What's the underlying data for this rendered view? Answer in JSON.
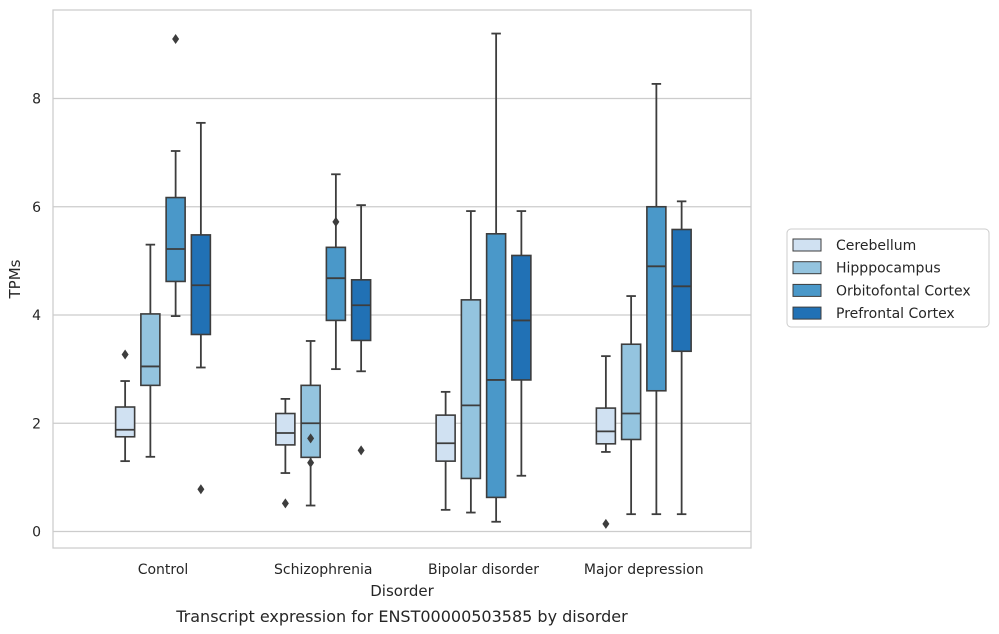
{
  "chart_data": {
    "type": "boxplot",
    "caption": "Transcript expression for ENST00000503585 by disorder",
    "xlabel": "Disorder",
    "ylabel": "TPMs",
    "ylim": [
      -0.3,
      9.65
    ],
    "yticks": [
      0,
      2,
      4,
      6,
      8
    ],
    "grid": true,
    "legend_position": "right",
    "categories": [
      "Control",
      "Schizophrenia",
      "Bipolar disorder",
      "Major depression"
    ],
    "series": [
      {
        "name": "Cerebellum",
        "color": "#d0e1f2",
        "boxes": [
          {
            "whislo": 1.3,
            "q1": 1.75,
            "med": 1.88,
            "q3": 2.3,
            "whishi": 2.78,
            "fliers": [
              3.27
            ]
          },
          {
            "whislo": 1.08,
            "q1": 1.6,
            "med": 1.82,
            "q3": 2.18,
            "whishi": 2.45,
            "fliers": [
              0.52
            ]
          },
          {
            "whislo": 0.4,
            "q1": 1.3,
            "med": 1.63,
            "q3": 2.15,
            "whishi": 2.58,
            "fliers": []
          },
          {
            "whislo": 1.47,
            "q1": 1.62,
            "med": 1.85,
            "q3": 2.28,
            "whishi": 3.24,
            "fliers": [
              0.14
            ]
          }
        ]
      },
      {
        "name": "Hipppocampus",
        "color": "#94c4df",
        "boxes": [
          {
            "whislo": 1.38,
            "q1": 2.7,
            "med": 3.05,
            "q3": 4.02,
            "whishi": 5.3,
            "fliers": []
          },
          {
            "whislo": 0.48,
            "q1": 1.37,
            "med": 2.0,
            "q3": 2.7,
            "whishi": 3.52,
            "fliers": [
              1.72,
              1.27
            ]
          },
          {
            "whislo": 0.35,
            "q1": 0.98,
            "med": 2.33,
            "q3": 4.28,
            "whishi": 5.92,
            "fliers": []
          },
          {
            "whislo": 0.32,
            "q1": 1.7,
            "med": 2.18,
            "q3": 3.46,
            "whishi": 4.35,
            "fliers": []
          }
        ]
      },
      {
        "name": "Orbitofontal Cortex",
        "color": "#4a98c9",
        "boxes": [
          {
            "whislo": 3.98,
            "q1": 4.62,
            "med": 5.22,
            "q3": 6.17,
            "whishi": 7.03,
            "fliers": [
              9.1
            ]
          },
          {
            "whislo": 3.0,
            "q1": 3.9,
            "med": 4.68,
            "q3": 5.25,
            "whishi": 6.6,
            "fliers": [
              5.72
            ]
          },
          {
            "whislo": 0.18,
            "q1": 0.63,
            "med": 2.8,
            "q3": 5.5,
            "whishi": 9.2,
            "fliers": []
          },
          {
            "whislo": 0.32,
            "q1": 2.6,
            "med": 4.9,
            "q3": 6.0,
            "whishi": 8.27,
            "fliers": []
          }
        ]
      },
      {
        "name": "Prefrontal Cortex",
        "color": "#2171b5",
        "boxes": [
          {
            "whislo": 3.03,
            "q1": 3.64,
            "med": 4.55,
            "q3": 5.48,
            "whishi": 7.55,
            "fliers": [
              0.78
            ]
          },
          {
            "whislo": 2.96,
            "q1": 3.53,
            "med": 4.18,
            "q3": 4.65,
            "whishi": 6.03,
            "fliers": [
              1.5
            ]
          },
          {
            "whislo": 1.03,
            "q1": 2.8,
            "med": 3.9,
            "q3": 5.1,
            "whishi": 5.92,
            "fliers": []
          },
          {
            "whislo": 0.32,
            "q1": 3.33,
            "med": 4.53,
            "q3": 5.58,
            "whishi": 6.1,
            "fliers": []
          }
        ]
      }
    ]
  }
}
